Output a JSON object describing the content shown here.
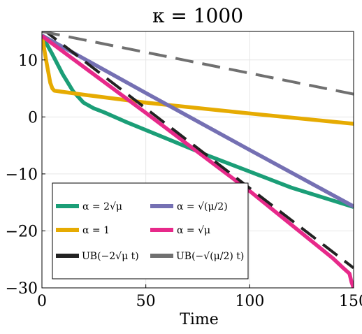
{
  "chart_data": {
    "type": "line",
    "title": "κ = 1000",
    "xlabel": "Time",
    "ylabel": "",
    "xlim": [
      0,
      150
    ],
    "ylim": [
      -30,
      15
    ],
    "xticks": [
      0,
      50,
      100,
      150
    ],
    "xtick_labels": [
      "0",
      "50",
      "100",
      "150"
    ],
    "yticks": [
      10,
      0,
      -10,
      -20,
      -30
    ],
    "ytick_labels": [
      "10",
      "0",
      "−10",
      "−20",
      "−30"
    ],
    "grid": true,
    "legend_position": "lower-left",
    "series": [
      {
        "name": "α = 2√μ",
        "color": "#1b9e77",
        "style": "solid",
        "x": [
          0,
          5,
          10,
          15,
          20,
          25,
          30,
          40,
          60,
          80,
          100,
          120,
          150
        ],
        "y": [
          14.3,
          11.0,
          7.5,
          4.5,
          2.5,
          1.5,
          0.8,
          -0.8,
          -3.8,
          -6.8,
          -9.6,
          -12.4,
          -15.8
        ]
      },
      {
        "name": "α = 1",
        "color": "#e6ab02",
        "style": "solid",
        "x": [
          0,
          2,
          4,
          5,
          6,
          8,
          20,
          50,
          100,
          150
        ],
        "y": [
          14.3,
          10.0,
          6.0,
          5.0,
          4.6,
          4.5,
          3.9,
          2.5,
          0.6,
          -1.2
        ]
      },
      {
        "name": "α = √(μ/2)",
        "color": "#7570b3",
        "style": "solid",
        "x": [
          0,
          50,
          100,
          150
        ],
        "y": [
          14.3,
          4.2,
          -5.8,
          -15.7
        ]
      },
      {
        "name": "α = √μ",
        "color": "#e7298a",
        "style": "solid",
        "x": [
          0,
          50,
          100,
          140,
          145,
          148,
          149,
          150
        ],
        "y": [
          14.2,
          0.7,
          -13.0,
          -24.8,
          -26.5,
          -27.5,
          -29.0,
          -30.0
        ]
      },
      {
        "name": "UB(−2√μ t)",
        "color": "#222222",
        "style": "dashed",
        "x": [
          0,
          150
        ],
        "y": [
          15.5,
          -26.5
        ]
      },
      {
        "name": "UB(−√(μ/2) t)",
        "color": "#707070",
        "style": "dashed",
        "x": [
          0,
          150
        ],
        "y": [
          15.0,
          4.0
        ]
      }
    ]
  }
}
